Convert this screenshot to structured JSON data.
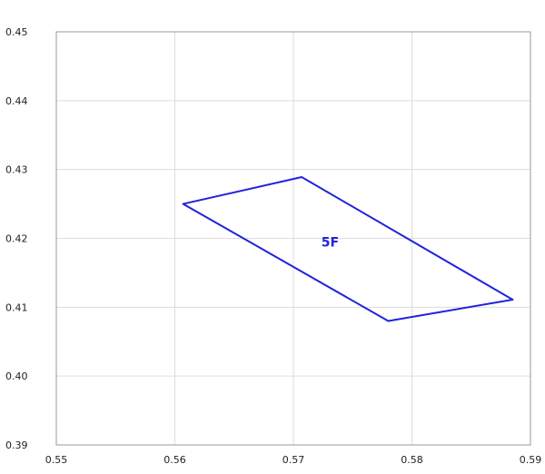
{
  "chart_data": {
    "type": "scatter",
    "title": "",
    "xlabel": "",
    "ylabel": "",
    "xlim": [
      0.55,
      0.59
    ],
    "ylim": [
      0.39,
      0.45
    ],
    "x_ticks": [
      "0.55",
      "0.56",
      "0.57",
      "0.58",
      "0.59"
    ],
    "y_ticks": [
      "0.45",
      "0.44",
      "0.43",
      "0.42",
      "0.41",
      "0.40",
      "0.39"
    ],
    "x_tick_values": [
      0.55,
      0.56,
      0.57,
      0.58,
      0.59
    ],
    "y_tick_values": [
      0.45,
      0.44,
      0.43,
      0.42,
      0.41,
      0.4,
      0.39
    ],
    "grid": true,
    "series": [
      {
        "label": "5F",
        "closed": true,
        "color": "#2222dd",
        "points": [
          {
            "x": 0.5607,
            "y": 0.425
          },
          {
            "x": 0.5707,
            "y": 0.4289
          },
          {
            "x": 0.5885,
            "y": 0.4111
          },
          {
            "x": 0.578,
            "y": 0.408
          }
        ],
        "label_position": {
          "x": 0.5731,
          "y": 0.4195
        }
      }
    ]
  }
}
